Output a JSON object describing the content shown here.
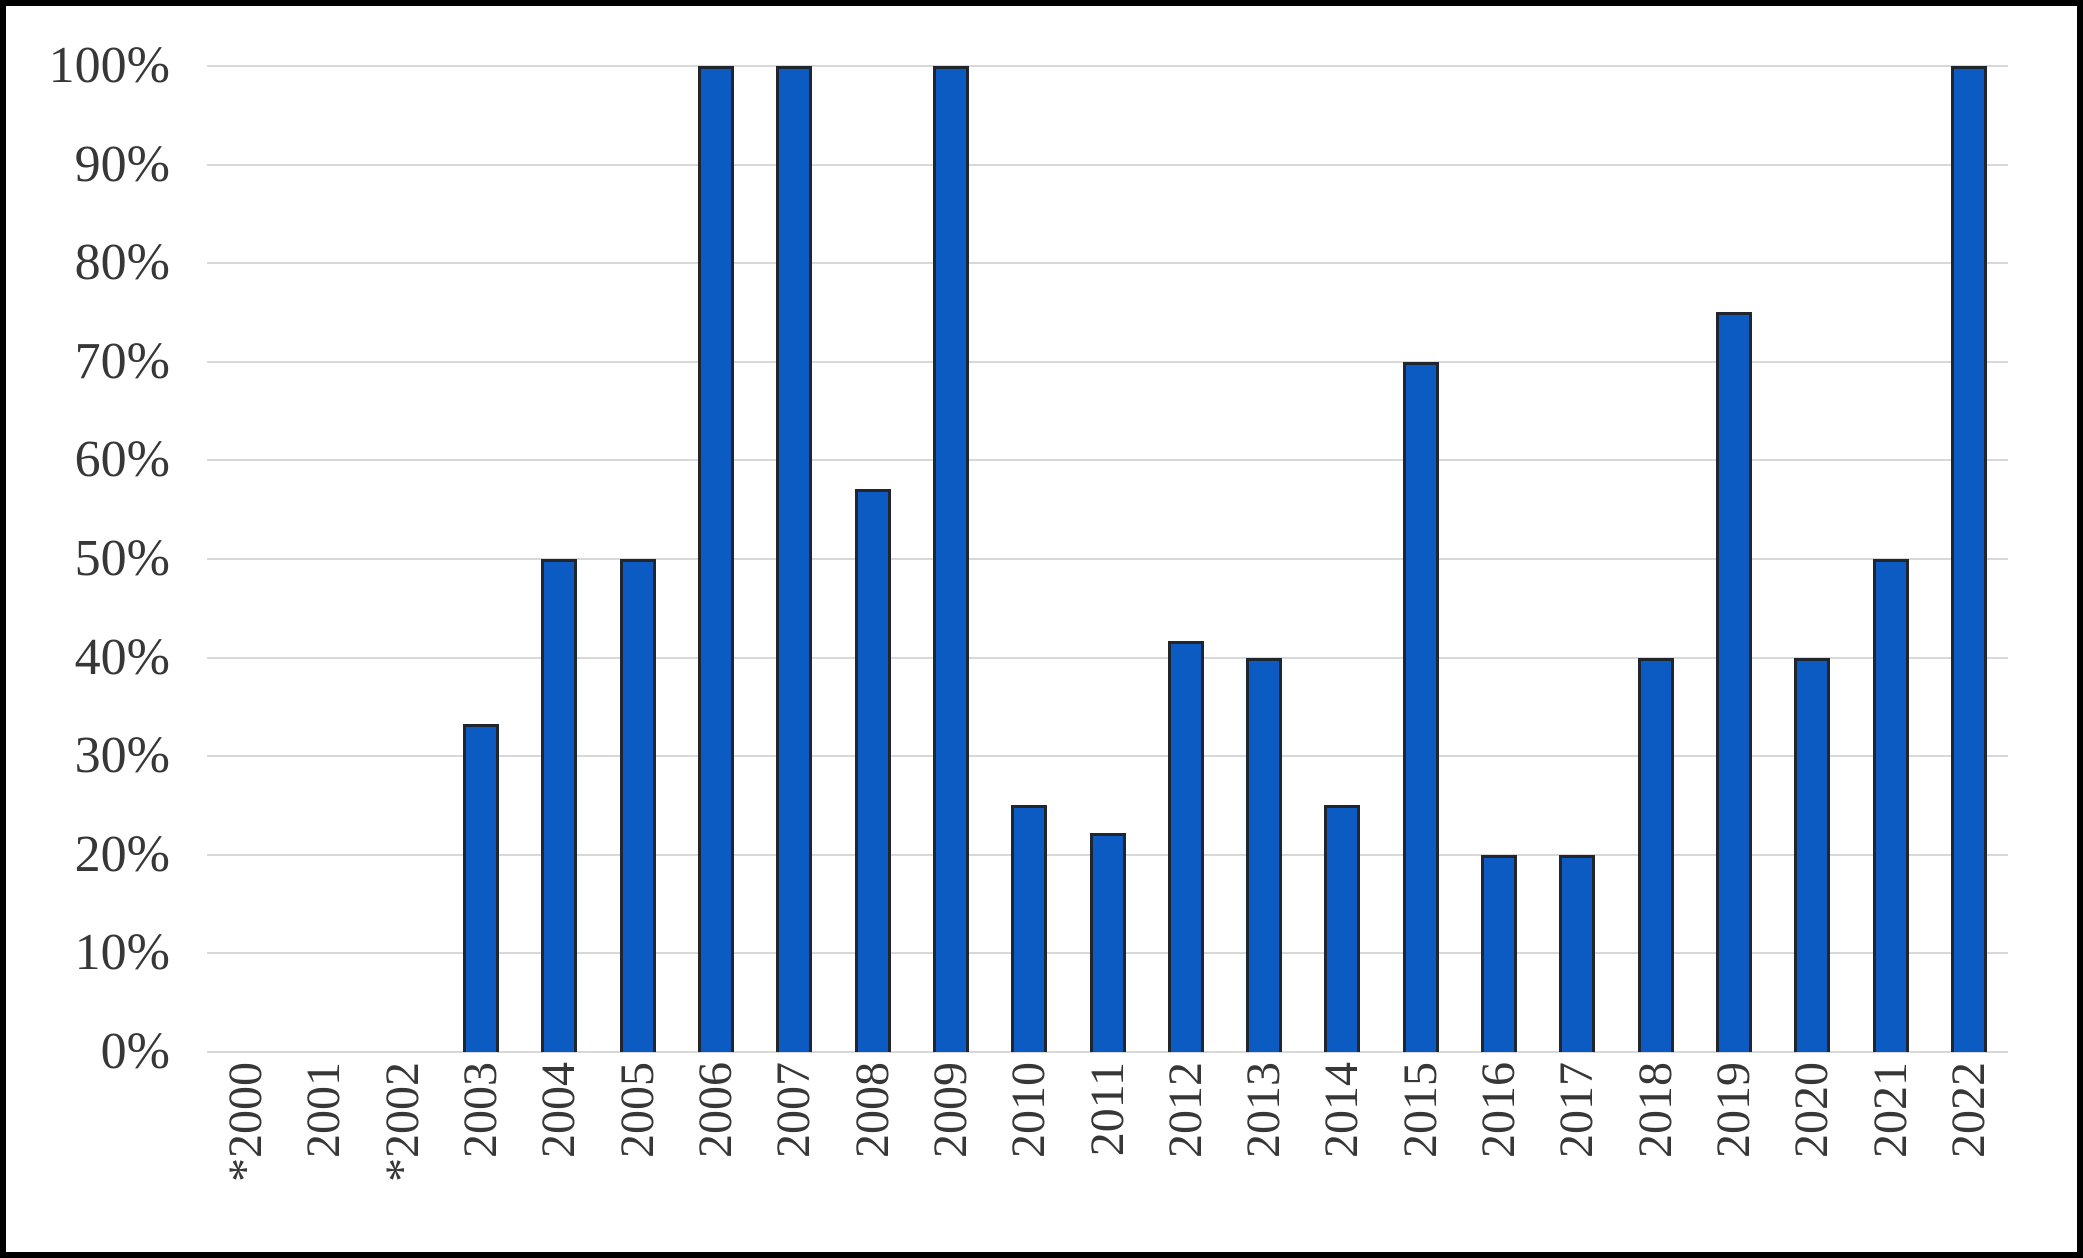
{
  "chart_data": {
    "type": "bar",
    "title": "",
    "categories": [
      "*2000",
      "2001",
      "*2002",
      "2003",
      "2004",
      "2005",
      "2006",
      "2007",
      "2008",
      "2009",
      "2010",
      "2011",
      "2012",
      "2013",
      "2014",
      "2015",
      "2016",
      "2017",
      "2018",
      "2019",
      "2020",
      "2021",
      "2022"
    ],
    "values": [
      0,
      0,
      0,
      33.3,
      50,
      50,
      100,
      100,
      57.1,
      100,
      25,
      22.2,
      41.7,
      40,
      25,
      70,
      20,
      20,
      40,
      75,
      40,
      50,
      100
    ],
    "xlabel": "",
    "ylabel": "",
    "ylim": [
      0,
      100
    ],
    "y_ticks": [
      "0%",
      "10%",
      "20%",
      "30%",
      "40%",
      "50%",
      "60%",
      "70%",
      "80%",
      "90%",
      "100%"
    ],
    "grid": "horizontal-only",
    "legend": "none",
    "colors": {
      "bar_fill": "#0b5bc3",
      "bar_border": "#20252e",
      "gridline": "#d8d8d8",
      "tick_text": "#373737",
      "frame": "#000000",
      "background": "#ffffff"
    }
  }
}
